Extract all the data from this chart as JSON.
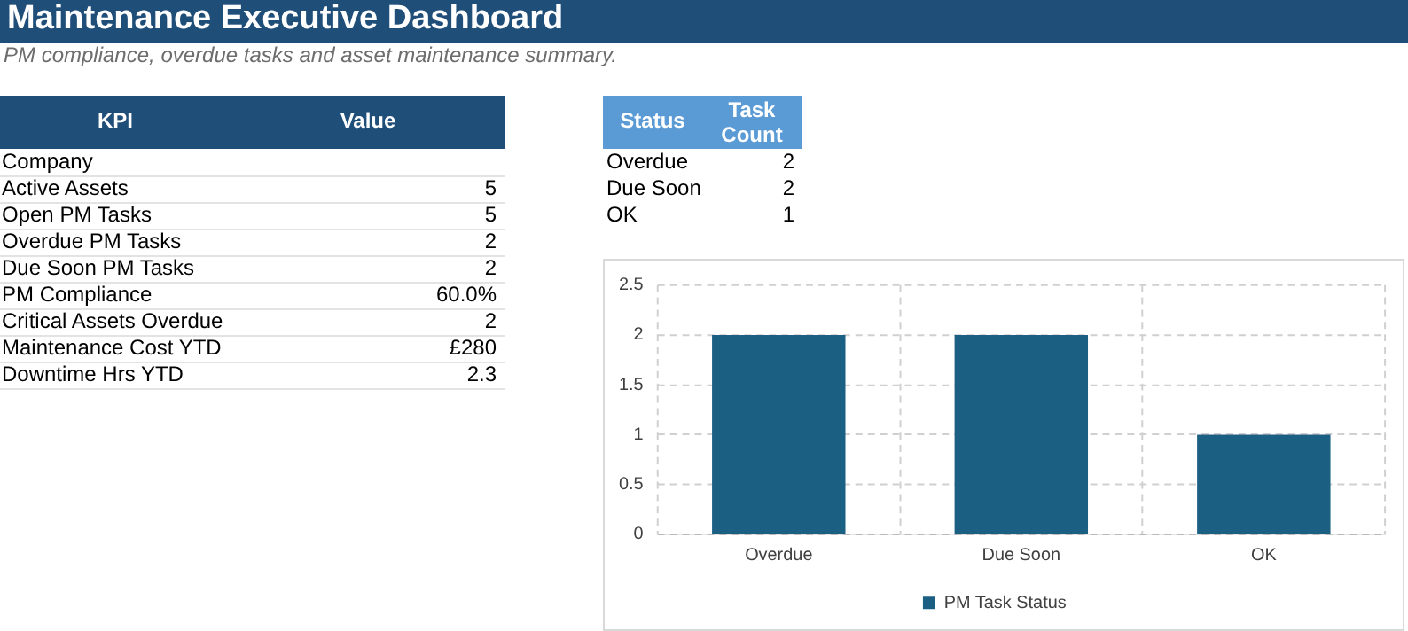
{
  "chart_data": [
    {
      "type": "other",
      "title": "Maintenance Executive Dashboard",
      "subtitle": "PM compliance, overdue tasks and asset maintenance summary.",
      "annotations": [
        "KPI",
        "Value"
      ],
      "categories": [
        "Company",
        "Active Assets",
        "Open PM Tasks",
        "Overdue PM Tasks",
        "Due Soon PM Tasks",
        "PM Compliance",
        "Critical Assets Overdue",
        "Maintenance Cost YTD",
        "Downtime Hrs YTD"
      ],
      "value_labels": [
        null,
        "5",
        "5",
        "2",
        "2",
        "60.0%",
        "2",
        "£280",
        "2.3"
      ]
    },
    {
      "type": "other",
      "annotations": [
        "Status",
        "Task Count"
      ],
      "categories": [
        "Overdue",
        "Due Soon",
        "OK"
      ],
      "value_labels": [
        "2",
        "2",
        "1"
      ]
    },
    {
      "type": "bar",
      "categories": [
        "Overdue",
        "Due Soon",
        "OK"
      ],
      "series": [
        {
          "name": "PM Task Status",
          "color": "#1b5f82",
          "values": [
            2,
            2,
            1
          ]
        }
      ],
      "ylim": [
        0,
        2.5
      ],
      "yticks": [
        0,
        0.5,
        1,
        1.5,
        2,
        2.5
      ],
      "grid": true,
      "line_style": "dashed",
      "legend": "bottom"
    }
  ]
}
